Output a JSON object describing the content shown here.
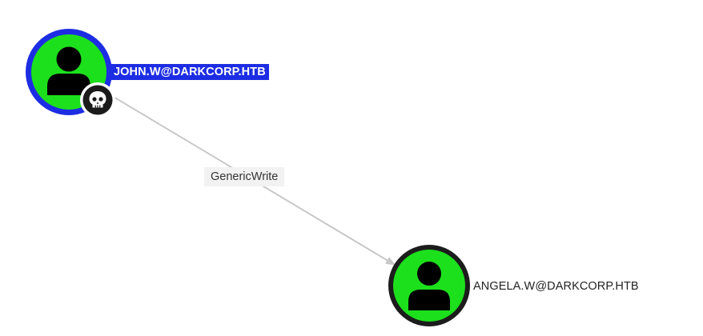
{
  "graph": {
    "nodes": [
      {
        "id": "source",
        "label": "JOHN.W@DARKCORP.HTB",
        "type": "user",
        "icon": "user-icon",
        "owned": true,
        "badge_icon": "skull-icon",
        "selected": true,
        "ring_color": "#1d2de3",
        "fill_color": "#1de01d"
      },
      {
        "id": "target",
        "label": "ANGELA.W@DARKCORP.HTB",
        "type": "user",
        "icon": "user-icon",
        "owned": false,
        "selected": false,
        "ring_color": "#1c1c1c",
        "fill_color": "#1de01d"
      }
    ],
    "edges": [
      {
        "from": "source",
        "to": "target",
        "label": "GenericWrite",
        "color": "#c8c8c8"
      }
    ]
  }
}
